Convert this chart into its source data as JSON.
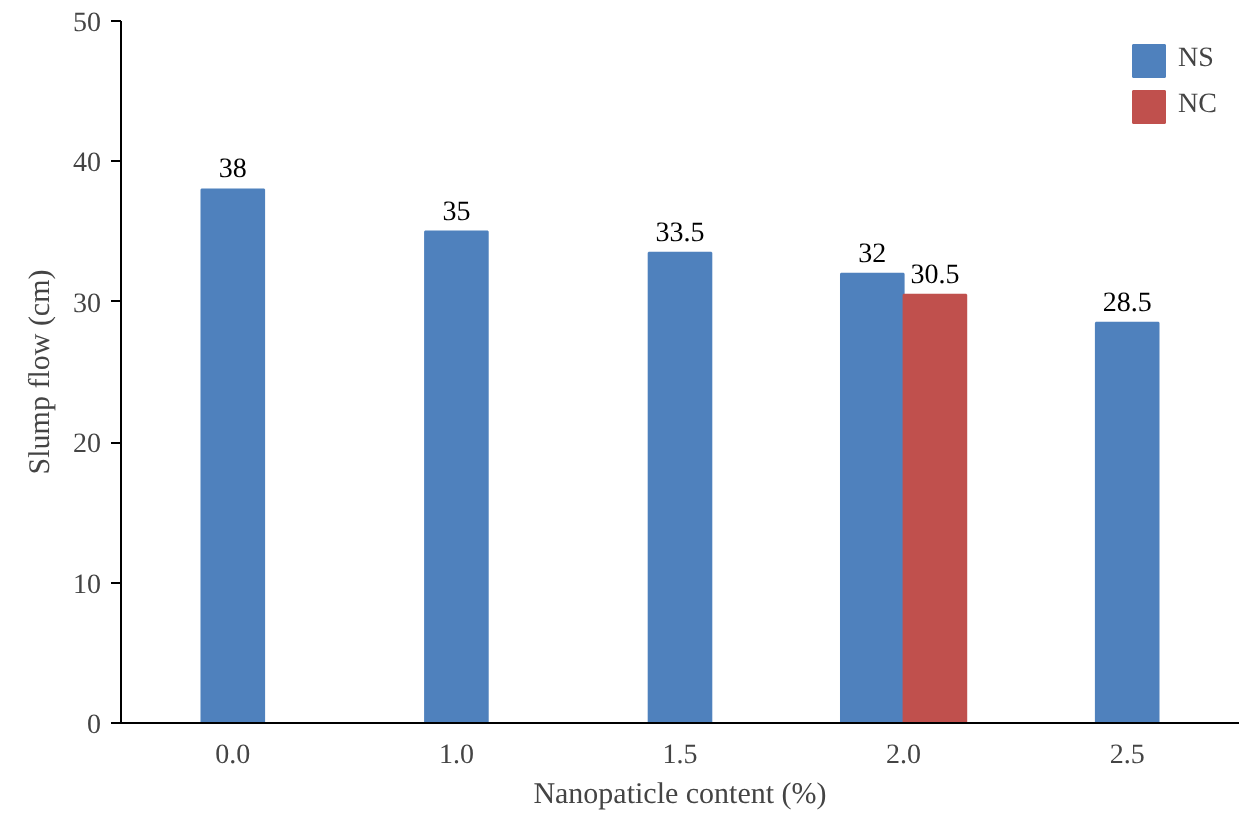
{
  "chart_data": {
    "type": "bar",
    "xlabel": "Nanopaticle content (%)",
    "ylabel": "Slump flow (cm)",
    "categories": [
      "0.0",
      "1.0",
      "1.5",
      "2.0",
      "2.5"
    ],
    "series": [
      {
        "name": "NS",
        "color": "#4f81bd",
        "values": [
          38,
          35,
          33.5,
          32,
          28.5
        ]
      },
      {
        "name": "NC",
        "color": "#c0504d",
        "values": [
          null,
          null,
          null,
          30.5,
          null
        ]
      }
    ],
    "ylim": [
      0,
      50
    ],
    "yticks": [
      0,
      10,
      20,
      30,
      40,
      50
    ],
    "grid": false,
    "legend": "top right",
    "data_labels": true
  }
}
